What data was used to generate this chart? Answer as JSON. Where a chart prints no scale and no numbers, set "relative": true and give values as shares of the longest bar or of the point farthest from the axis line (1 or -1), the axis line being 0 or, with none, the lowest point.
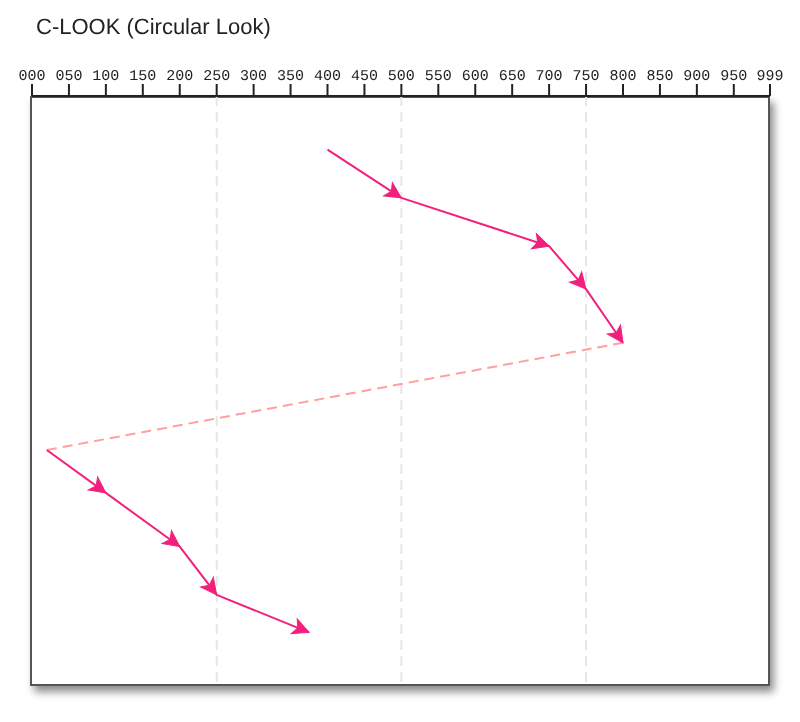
{
  "chart_data": {
    "type": "line",
    "title": "C-LOOK (Circular Look)",
    "relative": true,
    "xlim": [
      0,
      999
    ],
    "xticks": [
      {
        "value": 0,
        "label": "000"
      },
      {
        "value": 50,
        "label": "050"
      },
      100,
      150,
      200,
      250,
      300,
      350,
      400,
      450,
      500,
      550,
      600,
      650,
      700,
      750,
      800,
      850,
      900,
      950,
      999
    ],
    "tick_labels": "x",
    "ref_lines": [
      {
        "axis": "x",
        "value": 250,
        "color": "#e6e6e6",
        "line_style": "dashed"
      },
      {
        "axis": "x",
        "value": 500,
        "color": "#e6e6e6",
        "line_style": "dashed"
      },
      {
        "axis": "x",
        "value": 750,
        "color": "#e6e6e6",
        "line_style": "dashed"
      }
    ],
    "series": [
      {
        "color": "#f2207c",
        "line_style": "solid",
        "x": [
          400,
          500,
          700,
          750,
          800
        ],
        "values": [
          -0.1,
          -0.19,
          -0.28,
          -0.36,
          -0.46
        ]
      },
      {
        "color": "#ff9f9f",
        "line_style": "dashed",
        "x": [
          800,
          20
        ],
        "values": [
          -0.46,
          -0.66
        ]
      },
      {
        "color": "#f2207c",
        "line_style": "solid",
        "x": [
          20,
          100,
          200,
          250,
          375
        ],
        "values": [
          -0.66,
          -0.74,
          -0.84,
          -0.93,
          -1
        ]
      }
    ]
  }
}
